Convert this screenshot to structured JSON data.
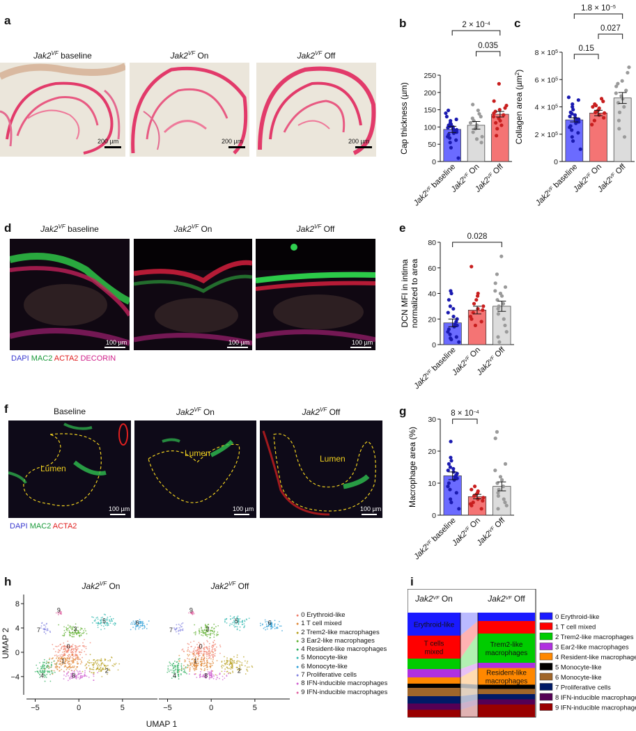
{
  "panels": {
    "a": {
      "label": "a",
      "titles": [
        {
          "gene": "Jak2",
          "sup": "VF",
          "rest": " baseline"
        },
        {
          "gene": "Jak2",
          "sup": "VF",
          "rest": " On"
        },
        {
          "gene": "Jak2",
          "sup": "VF",
          "rest": " Off"
        }
      ],
      "scalebar": "200 µm"
    },
    "b": {
      "label": "b"
    },
    "c": {
      "label": "c"
    },
    "d": {
      "label": "d",
      "titles": [
        {
          "gene": "Jak2",
          "sup": "VF",
          "rest": " baseline"
        },
        {
          "gene": "Jak2",
          "sup": "VF",
          "rest": " On"
        },
        {
          "gene": "Jak2",
          "sup": "VF",
          "rest": " Off"
        }
      ],
      "scalebar": "100 µm",
      "stains": [
        {
          "text": "DAPI",
          "color": "#3a3ad0"
        },
        {
          "text": "MAC2",
          "color": "#1a9a3a"
        },
        {
          "text": "ACTA2",
          "color": "#e02020"
        },
        {
          "text": "DECORIN",
          "color": "#d0208a"
        }
      ]
    },
    "e": {
      "label": "e"
    },
    "f": {
      "label": "f",
      "titles": [
        {
          "gene": "",
          "sup": "",
          "rest": "Baseline"
        },
        {
          "gene": "Jak2",
          "sup": "VF",
          "rest": " On"
        },
        {
          "gene": "Jak2",
          "sup": "VF",
          "rest": " Off"
        }
      ],
      "lumen": "Lumen",
      "scalebar": "100 µm",
      "stains": [
        {
          "text": "DAPI",
          "color": "#3a3ad0"
        },
        {
          "text": "MAC2",
          "color": "#1a9a3a"
        },
        {
          "text": "ACTA2",
          "color": "#e02020"
        }
      ]
    },
    "g": {
      "label": "g"
    },
    "h": {
      "label": "h",
      "titles": [
        {
          "gene": "Jak2",
          "sup": "VF",
          "rest": " On"
        },
        {
          "gene": "Jak2",
          "sup": "VF",
          "rest": " Off"
        }
      ],
      "xlabel": "UMAP 1",
      "ylabel": "UMAP 2"
    },
    "i": {
      "label": "i",
      "titles": [
        {
          "gene": "Jak2",
          "sup": "VF",
          "rest": " On"
        },
        {
          "gene": "Jak2",
          "sup": "VF",
          "rest": " Off"
        }
      ],
      "on_labels": [
        "Erythroid-like",
        "T cells mixed"
      ],
      "off_labels": [
        "Trem2-like macrophages",
        "Resident-like macrophages"
      ]
    }
  },
  "clusters": [
    {
      "id": "0",
      "name": "0 Erythroid-like",
      "umap": "#f0806e",
      "bar": "#1a1aff"
    },
    {
      "id": "1",
      "name": "1 T cell mixed",
      "umap": "#e08a3a",
      "bar": "#ff0000"
    },
    {
      "id": "2",
      "name": "2 Trem2-like macrophages",
      "umap": "#b8a020",
      "bar": "#00cc00"
    },
    {
      "id": "3",
      "name": "3 Ear2-like macrophages",
      "umap": "#60b030",
      "bar": "#b030e0"
    },
    {
      "id": "4",
      "name": "4 Resident-like macrophages",
      "umap": "#30b060",
      "bar": "#ff8800"
    },
    {
      "id": "5",
      "name": "5 Monocyte-like",
      "umap": "#30b8b0",
      "bar": "#000000"
    },
    {
      "id": "6",
      "name": "6 Monocyte-like",
      "umap": "#30a0d8",
      "bar": "#a0662a"
    },
    {
      "id": "7",
      "name": "7 Proliferative cells",
      "umap": "#8080e0",
      "bar": "#001a66"
    },
    {
      "id": "8",
      "name": "8 IFN-inducible macrophages",
      "umap": "#d060d0",
      "bar": "#550055"
    },
    {
      "id": "9",
      "name": "9 IFN-inducible macrophages",
      "umap": "#e060a0",
      "bar": "#990000"
    }
  ],
  "chart_data": [
    {
      "id": "b",
      "type": "bar",
      "categories": [
        "Jak2VF baseline",
        "Jak2VF On",
        "Jak2VF Off"
      ],
      "category_parts": [
        [
          "Jak2",
          "VF",
          " baseline"
        ],
        [
          "Jak2",
          "VF",
          " On"
        ],
        [
          "Jak2",
          "VF",
          " Off"
        ]
      ],
      "means": [
        93,
        105,
        137
      ],
      "sem": [
        9,
        11,
        8
      ],
      "colors": [
        "#6b6bff",
        "#dcdcdc",
        "#f47474"
      ],
      "dot_colors": [
        "#1a1ab0",
        "#9a9a9a",
        "#c81e1e"
      ],
      "points": [
        [
          10,
          40,
          55,
          62,
          68,
          72,
          78,
          82,
          85,
          88,
          90,
          92,
          95,
          98,
          100,
          102,
          105,
          108,
          112,
          118,
          122,
          130,
          140,
          148
        ],
        [
          55,
          65,
          72,
          85,
          95,
          100,
          105,
          112,
          118,
          125,
          130,
          138,
          148,
          165
        ],
        [
          75,
          95,
          105,
          112,
          118,
          125,
          130,
          135,
          140,
          145,
          150,
          155,
          162,
          175,
          225
        ]
      ],
      "ylabel_parts": [
        "Cap thickness (",
        "µ",
        "m)"
      ],
      "ylim": [
        0,
        250
      ],
      "yticks": [
        "0",
        "50",
        "100",
        "150",
        "200",
        "250"
      ],
      "comparisons": [
        {
          "from": 0,
          "to": 2,
          "level": 0,
          "label": "2 × 10",
          "sup": "−4"
        },
        {
          "from": 1,
          "to": 2,
          "level": 1,
          "label": "0.035",
          "sup": ""
        }
      ]
    },
    {
      "id": "c",
      "type": "bar",
      "categories": [
        "Jak2VF baseline",
        "Jak2VF On",
        "Jak2VF Off"
      ],
      "category_parts": [
        [
          "Jak2",
          "VF",
          " baseline"
        ],
        [
          "Jak2",
          "VF",
          " On"
        ],
        [
          "Jak2",
          "VF",
          " Off"
        ]
      ],
      "means": [
        305000,
        355000,
        465000
      ],
      "sem": [
        15000,
        20000,
        40000
      ],
      "colors": [
        "#6b6bff",
        "#f47474",
        "#dcdcdc"
      ],
      "dot_colors": [
        "#1a1ab0",
        "#c81e1e",
        "#9a9a9a"
      ],
      "points": [
        [
          90000,
          150000,
          180000,
          210000,
          230000,
          250000,
          260000,
          280000,
          290000,
          300000,
          305000,
          310000,
          320000,
          330000,
          340000,
          350000,
          360000,
          380000,
          400000,
          420000,
          450000,
          470000
        ],
        [
          270000,
          300000,
          320000,
          340000,
          355000,
          360000,
          370000,
          380000,
          390000,
          400000,
          410000,
          420000,
          440000,
          460000
        ],
        [
          180000,
          240000,
          300000,
          360000,
          400000,
          430000,
          460000,
          480000,
          500000,
          520000,
          550000,
          570000,
          590000,
          650000,
          690000
        ]
      ],
      "ylabel_parts": [
        "Collagen area (",
        "µ",
        "m",
        "2",
        ")"
      ],
      "ylim": [
        0,
        800000
      ],
      "yticks": [
        [
          "0",
          ""
        ],
        [
          "2 × 10",
          "5"
        ],
        [
          "4 × 10",
          "5"
        ],
        [
          "6 × 10",
          "5"
        ],
        [
          "8 × 10",
          "5"
        ]
      ],
      "comparisons": [
        {
          "from": 0,
          "to": 2,
          "level": 0,
          "label": "1.8 × 10",
          "sup": "−5"
        },
        {
          "from": 1,
          "to": 2,
          "level": 1,
          "label": "0.027",
          "sup": ""
        },
        {
          "from": 0,
          "to": 1,
          "level": 2,
          "label": "0.15",
          "sup": ""
        }
      ]
    },
    {
      "id": "e",
      "type": "bar",
      "categories": [
        "Jak2VF baseline",
        "Jak2VF On",
        "Jak2VF Off"
      ],
      "category_parts": [
        [
          "Jak2",
          "VF",
          " baseline"
        ],
        [
          "Jak2",
          "VF",
          " On"
        ],
        [
          "Jak2",
          "VF",
          " Off"
        ]
      ],
      "means": [
        17,
        27,
        30
      ],
      "sem": [
        3,
        3,
        4
      ],
      "colors": [
        "#6b6bff",
        "#f47474",
        "#dcdcdc"
      ],
      "dot_colors": [
        "#1a1ab0",
        "#c81e1e",
        "#9a9a9a"
      ],
      "points": [
        [
          2,
          4,
          5,
          6,
          8,
          10,
          12,
          14,
          15,
          16,
          18,
          20,
          22,
          25,
          28,
          30,
          35,
          40,
          42
        ],
        [
          15,
          18,
          20,
          22,
          25,
          27,
          28,
          30,
          32,
          35,
          38,
          40,
          61
        ],
        [
          2,
          6,
          10,
          15,
          20,
          24,
          28,
          30,
          32,
          35,
          38,
          40,
          42,
          45,
          48,
          55,
          69
        ]
      ],
      "ylabel_lines": [
        "DCN MFI in intima",
        "normalized to area"
      ],
      "ylim": [
        0,
        80
      ],
      "yticks": [
        "0",
        "20",
        "40",
        "60",
        "80"
      ],
      "comparisons": [
        {
          "from": 0,
          "to": 2,
          "level": 0,
          "label": "0.028",
          "sup": ""
        }
      ]
    },
    {
      "id": "g",
      "type": "bar",
      "categories": [
        "Jak2VF baseline",
        "Jak2VF On",
        "Jak2VF Off"
      ],
      "category_parts": [
        [
          "Jak2",
          "VF",
          " baseline"
        ],
        [
          "Jak2",
          "VF",
          " On"
        ],
        [
          "Jak2",
          "VF",
          " Off"
        ]
      ],
      "means": [
        12.3,
        5.8,
        9
      ],
      "sem": [
        1.2,
        0.7,
        1.4
      ],
      "colors": [
        "#6b6bff",
        "#f47474",
        "#dcdcdc"
      ],
      "dot_colors": [
        "#1a1ab0",
        "#c81e1e",
        "#9a9a9a"
      ],
      "points": [
        [
          2,
          4,
          5,
          7,
          8,
          9,
          10,
          11,
          11.5,
          12,
          12.5,
          13,
          13.5,
          14,
          14.5,
          15,
          16,
          17,
          18,
          23
        ],
        [
          2,
          3,
          3.5,
          4,
          4.5,
          5,
          5.5,
          6,
          6.5,
          7,
          7.5,
          8,
          9
        ],
        [
          2,
          3,
          4,
          5,
          6,
          7,
          8,
          9,
          10,
          11,
          12,
          14,
          16,
          24,
          26
        ]
      ],
      "ylabel_lines": [
        "Macrophage area (%)"
      ],
      "ylim": [
        0,
        30
      ],
      "yticks": [
        "0",
        "10",
        "20",
        "30"
      ],
      "comparisons": [
        {
          "from": 0,
          "to": 1,
          "level": 0,
          "label": "8 × 10",
          "sup": "−4"
        }
      ]
    },
    {
      "id": "h",
      "type": "scatter",
      "xticks": [
        "−5",
        "0",
        "5"
      ],
      "yticks": [
        "−4",
        "0",
        "4",
        "8"
      ],
      "xlim": [
        -6,
        9
      ],
      "ylim": [
        -7,
        9.5
      ],
      "clusters": [
        {
          "id": "0",
          "center": [
            -1,
            0.3
          ],
          "spread": [
            1.7,
            1.4
          ],
          "n": 160
        },
        {
          "id": "1",
          "center": [
            -1.5,
            -1.8
          ],
          "spread": [
            1.8,
            1.3
          ],
          "n": 160
        },
        {
          "id": "2",
          "center": [
            2.5,
            -2.2
          ],
          "spread": [
            1.6,
            1.3
          ],
          "n": 110
        },
        {
          "id": "3",
          "center": [
            -0.5,
            3.5
          ],
          "spread": [
            1.2,
            0.9
          ],
          "n": 90
        },
        {
          "id": "4",
          "center": [
            -3.8,
            -2.8
          ],
          "spread": [
            1.0,
            1.4
          ],
          "n": 90
        },
        {
          "id": "5",
          "center": [
            3,
            5
          ],
          "spread": [
            1.3,
            1.0
          ],
          "n": 70
        },
        {
          "id": "6",
          "center": [
            6.8,
            4.5
          ],
          "spread": [
            1.0,
            0.7
          ],
          "n": 60
        },
        {
          "id": "7",
          "center": [
            -3.8,
            4
          ],
          "spread": [
            0.5,
            0.8
          ],
          "n": 25
        },
        {
          "id": "8",
          "center": [
            -0.3,
            -3.8
          ],
          "spread": [
            1.8,
            0.7
          ],
          "n": 80
        },
        {
          "id": "9",
          "center": [
            -2.2,
            6.5
          ],
          "spread": [
            0.3,
            0.3
          ],
          "n": 15
        }
      ],
      "label_positions": [
        {
          "id": "0",
          "xy": [
            -1.2,
            0.6
          ]
        },
        {
          "id": "1",
          "xy": [
            -1.8,
            -1.8
          ]
        },
        {
          "id": "2",
          "xy": [
            3.2,
            -3.4
          ]
        },
        {
          "id": "3",
          "xy": [
            -0.4,
            3.5
          ]
        },
        {
          "id": "4",
          "xy": [
            -4.2,
            -4.2
          ]
        },
        {
          "id": "5",
          "xy": [
            2.9,
            4.8
          ]
        },
        {
          "id": "6",
          "xy": [
            6.7,
            4.5
          ]
        },
        {
          "id": "7",
          "xy": [
            -4.6,
            3.3
          ]
        },
        {
          "id": "8",
          "xy": [
            -0.6,
            -4.2
          ]
        },
        {
          "id": "9",
          "xy": [
            -2.3,
            6.6
          ]
        }
      ]
    },
    {
      "id": "i",
      "type": "bar",
      "stacked": true,
      "categories": [
        "Jak2VF On",
        "Jak2VF Off"
      ],
      "proportions": {
        "on": [
          0.22,
          0.22,
          0.1,
          0.08,
          0.06,
          0.04,
          0.08,
          0.07,
          0.06,
          0.07
        ],
        "off": [
          0.08,
          0.12,
          0.28,
          0.05,
          0.16,
          0.04,
          0.05,
          0.05,
          0.05,
          0.12
        ]
      }
    }
  ]
}
